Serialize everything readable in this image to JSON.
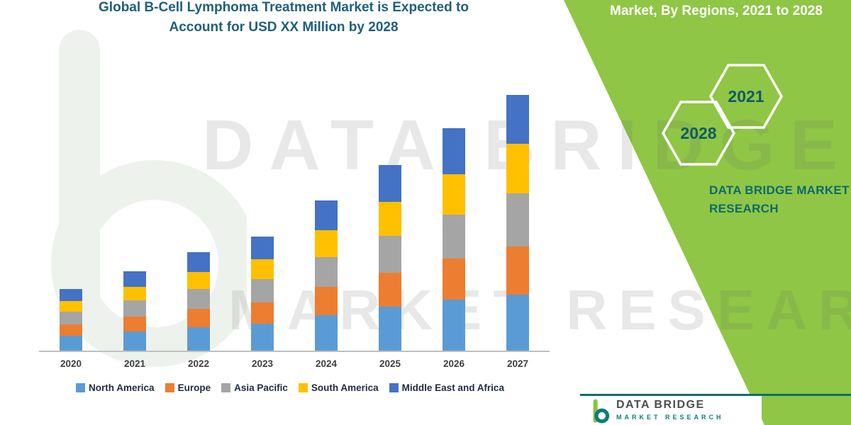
{
  "title": {
    "line1": "Global B-Cell Lymphoma Treatment Market is Expected to",
    "line2": "Account for USD XX Million by 2028"
  },
  "banner": {
    "heading": "Market, By Regions, 2021 to 2028",
    "hex_back": "2028",
    "hex_front": "2021",
    "brand_line1": "DATA BRIDGE MARKET",
    "brand_line2": "RESEARCH"
  },
  "watermark": {
    "line1": "DATA BRIDGE",
    "line2": "MARKET RESEARCH",
    "logo": "data-bridge-b-watermark"
  },
  "footer": {
    "brand": "DATA BRIDGE",
    "sub_brand": "MARKET RESEARCH"
  },
  "colors": {
    "accent_green": "#8FC645",
    "teal": "#0E6E6E",
    "title_blue": "#1F5F7B",
    "axis_gray": "#BFBFBF"
  },
  "chart_data": {
    "type": "bar",
    "stacked": true,
    "title": "Global B-Cell Lymphoma Treatment Market is Expected to Account for USD XX Million by 2028",
    "xlabel": "",
    "ylabel": "",
    "units": "relative (no y-axis shown; market sized in USD XX Million)",
    "grid": false,
    "legend_position": "bottom",
    "categories": [
      "2020",
      "2021",
      "2022",
      "2023",
      "2024",
      "2025",
      "2026",
      "2027"
    ],
    "series": [
      {
        "name": "North America",
        "color": "#5B9BD5",
        "values": [
          21,
          27,
          33,
          38,
          50,
          62,
          72,
          79
        ]
      },
      {
        "name": "Europe",
        "color": "#ED7D31",
        "values": [
          16,
          21,
          26,
          30,
          40,
          48,
          58,
          68
        ]
      },
      {
        "name": "Asia Pacific",
        "color": "#A5A5A5",
        "values": [
          18,
          23,
          28,
          33,
          42,
          52,
          62,
          75
        ]
      },
      {
        "name": "South America",
        "color": "#FFC000",
        "values": [
          15,
          19,
          24,
          28,
          38,
          48,
          57,
          70
        ]
      },
      {
        "name": "Middle East and Africa",
        "color": "#4472C4",
        "values": [
          17,
          22,
          28,
          32,
          42,
          52,
          65,
          69
        ]
      }
    ],
    "totals": [
      87,
      112,
      139,
      161,
      212,
      262,
      314,
      361
    ]
  }
}
